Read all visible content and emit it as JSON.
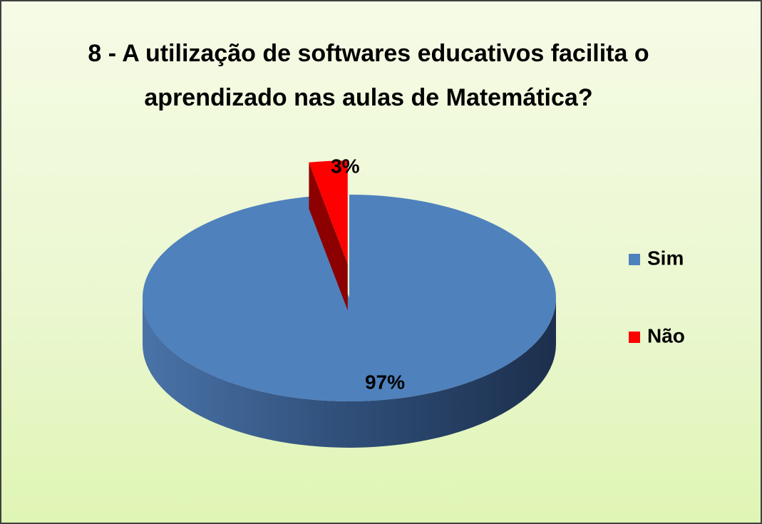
{
  "chart_data": {
    "type": "pie",
    "title": "8 - A utilização de softwares educativos facilita o aprendizado nas aulas de Matemática?",
    "categories": [
      "Sim",
      "Não"
    ],
    "values": [
      97,
      3
    ],
    "value_labels": [
      "97%",
      "3%"
    ],
    "colors": [
      "#4f81bd",
      "#ff0000"
    ],
    "legend": "right"
  }
}
